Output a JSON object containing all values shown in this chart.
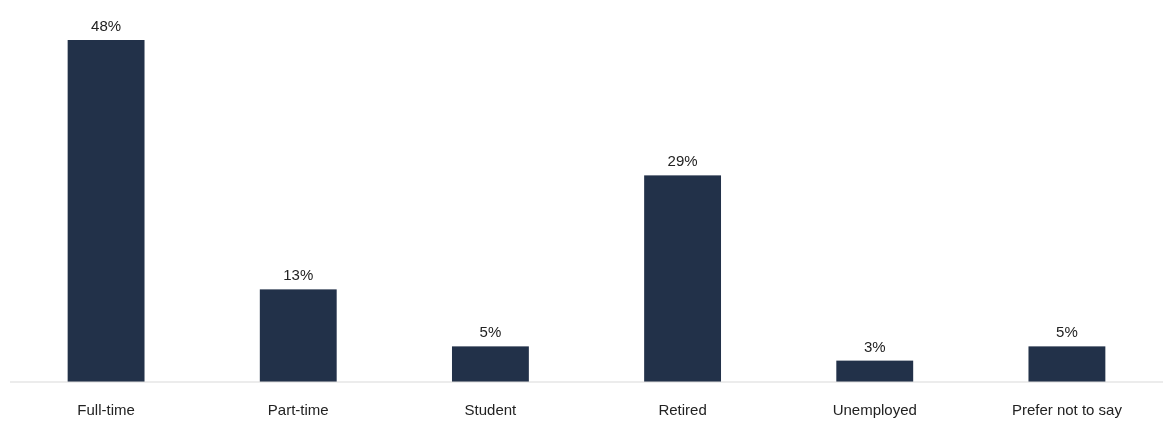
{
  "chart_data": {
    "type": "bar",
    "categories": [
      "Full-time",
      "Part-time",
      "Student",
      "Retired",
      "Unemployed",
      "Prefer not to say"
    ],
    "values": [
      48,
      13,
      5,
      29,
      3,
      5
    ],
    "color": "#223149",
    "value_labels": [
      "48%",
      "13%",
      "5%",
      "29%",
      "3%",
      "5%"
    ]
  }
}
